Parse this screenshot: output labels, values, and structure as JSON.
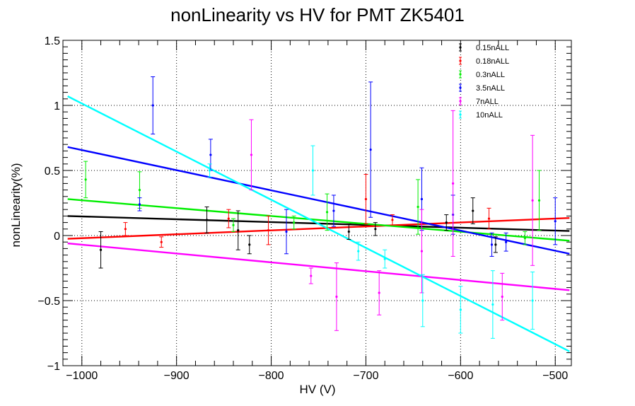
{
  "chart_data": {
    "type": "scatter",
    "title": "nonLinearity vs HV for PMT ZK5401",
    "xlabel": "HV (V)",
    "ylabel": "nonLinearity(%)",
    "xlim": [
      -1020,
      -483
    ],
    "ylim": [
      -1,
      1.5
    ],
    "xticks": [
      -1000,
      -900,
      -800,
      -700,
      -600,
      -500
    ],
    "xtick_labels": [
      "−1000",
      "−900",
      "−800",
      "−700",
      "−600",
      "−500"
    ],
    "yticks": [
      -1,
      -0.5,
      0,
      0.5,
      1,
      1.5
    ],
    "ytick_labels": [
      "−1",
      "−0.5",
      "0",
      "0.5",
      "1",
      "1.5"
    ],
    "grid": true,
    "legend_position": "top-right",
    "series": [
      {
        "name": "0.15nALL",
        "color": "#000000",
        "points": [
          {
            "x": -980,
            "y": -0.11,
            "err": 0.14
          },
          {
            "x": -868,
            "y": 0.12,
            "err": 0.1
          },
          {
            "x": -835,
            "y": 0.04,
            "err": 0.15
          },
          {
            "x": -823,
            "y": -0.07,
            "err": 0.07
          },
          {
            "x": -718,
            "y": 0.03,
            "err": 0.06
          },
          {
            "x": -690,
            "y": 0.05,
            "err": 0.05
          },
          {
            "x": -615,
            "y": 0.1,
            "err": 0.06
          },
          {
            "x": -587,
            "y": 0.19,
            "err": 0.1
          },
          {
            "x": -563,
            "y": -0.07,
            "err": 0.06
          }
        ],
        "fit": {
          "x": [
            -1015,
            -485
          ],
          "y": [
            0.15,
            0.035
          ]
        }
      },
      {
        "name": "0.18nALL",
        "color": "#ff0000",
        "points": [
          {
            "x": -954,
            "y": 0.05,
            "err": 0.05
          },
          {
            "x": -916,
            "y": -0.05,
            "err": 0.04
          },
          {
            "x": -845,
            "y": 0.13,
            "err": 0.07
          },
          {
            "x": -803,
            "y": 0.04,
            "err": 0.11
          },
          {
            "x": -700,
            "y": 0.28,
            "err": 0.19
          },
          {
            "x": -672,
            "y": 0.12,
            "err": 0.04
          },
          {
            "x": -570,
            "y": 0.13,
            "err": 0.08
          }
        ],
        "fit": {
          "x": [
            -1015,
            -485
          ],
          "y": [
            -0.025,
            0.135
          ]
        }
      },
      {
        "name": "0.3nALL",
        "color": "#00ee00",
        "points": [
          {
            "x": -996,
            "y": 0.43,
            "err": 0.14
          },
          {
            "x": -939,
            "y": 0.35,
            "err": 0.14
          },
          {
            "x": -840,
            "y": 0.08,
            "err": 0.05
          },
          {
            "x": -776,
            "y": 0.1,
            "err": 0.05
          },
          {
            "x": -741,
            "y": 0.18,
            "err": 0.14
          },
          {
            "x": -645,
            "y": 0.22,
            "err": 0.21
          },
          {
            "x": -532,
            "y": -0.02,
            "err": 0.05
          },
          {
            "x": -517,
            "y": 0.27,
            "err": 0.23
          }
        ],
        "fit": {
          "x": [
            -1015,
            -485
          ],
          "y": [
            0.28,
            -0.04
          ]
        }
      },
      {
        "name": "3.5nALL",
        "color": "#0000ff",
        "points": [
          {
            "x": -939,
            "y": 0.24,
            "err": 0.05
          },
          {
            "x": -925,
            "y": 1.0,
            "err": 0.22
          },
          {
            "x": -864,
            "y": 0.62,
            "err": 0.12
          },
          {
            "x": -784,
            "y": 0.03,
            "err": 0.17
          },
          {
            "x": -734,
            "y": 0.19,
            "err": 0.12
          },
          {
            "x": -695,
            "y": 0.66,
            "err": 0.52
          },
          {
            "x": -641,
            "y": 0.28,
            "err": 0.24
          },
          {
            "x": -608,
            "y": 0.16,
            "err": 0.15
          },
          {
            "x": -567,
            "y": -0.07,
            "err": 0.09
          },
          {
            "x": -552,
            "y": -0.05,
            "err": 0.07
          },
          {
            "x": -500,
            "y": 0.11,
            "err": 0.18
          }
        ],
        "fit": {
          "x": [
            -1015,
            -485
          ],
          "y": [
            0.68,
            -0.14
          ]
        }
      },
      {
        "name": "7nALL",
        "color": "#ff00ff",
        "points": [
          {
            "x": -821,
            "y": 0.62,
            "err": 0.27
          },
          {
            "x": -758,
            "y": -0.31,
            "err": 0.06
          },
          {
            "x": -731,
            "y": -0.47,
            "err": 0.26
          },
          {
            "x": -686,
            "y": -0.44,
            "err": 0.17
          },
          {
            "x": -641,
            "y": -0.12,
            "err": 0.32
          },
          {
            "x": -608,
            "y": 0.4,
            "err": 0.56
          },
          {
            "x": -556,
            "y": -0.47,
            "err": 0.18
          },
          {
            "x": -524,
            "y": 0.27,
            "err": 0.5
          }
        ],
        "fit": {
          "x": [
            -1015,
            -485
          ],
          "y": [
            -0.06,
            -0.42
          ]
        }
      },
      {
        "name": "10nALL",
        "color": "#00ffff",
        "points": [
          {
            "x": -865,
            "y": 0.5,
            "err": 0.05
          },
          {
            "x": -756,
            "y": 0.5,
            "err": 0.19
          },
          {
            "x": -708,
            "y": -0.12,
            "err": 0.07
          },
          {
            "x": -680,
            "y": -0.18,
            "err": 0.07
          },
          {
            "x": -640,
            "y": -0.5,
            "err": 0.2
          },
          {
            "x": -600,
            "y": -0.57,
            "err": 0.18
          },
          {
            "x": -566,
            "y": -0.53,
            "err": 0.26
          },
          {
            "x": -524,
            "y": -0.5,
            "err": 0.22
          }
        ],
        "fit": {
          "x": [
            -1015,
            -485
          ],
          "y": [
            1.07,
            -0.89
          ]
        }
      }
    ]
  }
}
